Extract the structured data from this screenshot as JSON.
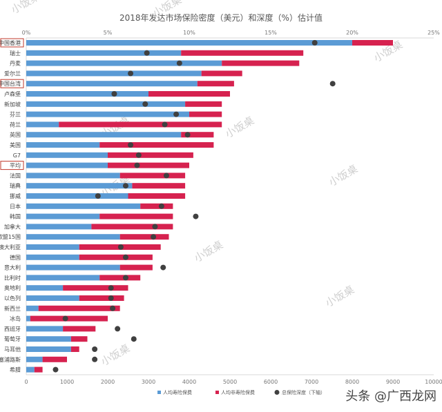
{
  "chart_data": {
    "type": "bar",
    "orientation": "horizontal",
    "stacked": true,
    "title": "2018年发达市场保险密度（美元）和深度（%）估计值",
    "categories": [
      "中国香港",
      "瑞士",
      "丹麦",
      "爱尔兰",
      "中国台湾",
      "卢森堡",
      "新加坡",
      "芬兰",
      "荷兰",
      "英国",
      "美国",
      "G7",
      "平均",
      "法国",
      "瑞典",
      "挪威",
      "日本",
      "韩国",
      "加拿大",
      "欧盟15国",
      "澳大利亚",
      "德国",
      "意大利",
      "比利时",
      "奥地利",
      "以色列",
      "新西兰",
      "冰岛",
      "西班牙",
      "葡萄牙",
      "马耳他",
      "塞浦路斯",
      "希腊"
    ],
    "highlighted": [
      "中国香港",
      "中国台湾",
      "平均"
    ],
    "series": [
      {
        "name": "人均寿险保费",
        "color": "#5b9bd5",
        "values": [
          8000,
          3800,
          4800,
          4300,
          4200,
          3000,
          3900,
          4000,
          800,
          3800,
          1800,
          2000,
          2000,
          2300,
          2600,
          2500,
          2800,
          1800,
          1600,
          2300,
          1300,
          1300,
          2300,
          1800,
          900,
          1300,
          300,
          100,
          900,
          1100,
          1100,
          400,
          200
        ]
      },
      {
        "name": "人均非寿险保费",
        "color": "#d6224f",
        "values": [
          1000,
          3000,
          1900,
          1000,
          900,
          2000,
          900,
          800,
          4000,
          800,
          2800,
          2100,
          2000,
          1600,
          1300,
          1400,
          800,
          1800,
          2000,
          1200,
          2000,
          1800,
          800,
          1000,
          1600,
          1100,
          2000,
          1900,
          800,
          400,
          200,
          600,
          200
        ]
      },
      {
        "name": "总保险深度（下轴）",
        "color": "#404040",
        "type": "scatter",
        "values": [
          17.7,
          7.4,
          9.4,
          6.4,
          18.8,
          5.4,
          7.3,
          9.2,
          8.5,
          9.9,
          6.4,
          6.9,
          6.8,
          8.6,
          6.1,
          4.4,
          8.3,
          10.4,
          7.9,
          7.8,
          5.8,
          6.1,
          8.4,
          6.1,
          5.2,
          5.2,
          5.3,
          2.4,
          5.6,
          6.6,
          4.2,
          4.2,
          1.8
        ]
      }
    ],
    "x_axis_bottom": {
      "range": [
        0,
        10000
      ],
      "ticks": [
        "0",
        "1000",
        "2000",
        "3000",
        "4000",
        "5000",
        "6000",
        "7000",
        "8000",
        "9000",
        "10000"
      ]
    },
    "x_axis_top": {
      "range": [
        0,
        25
      ],
      "ticks": [
        "0%",
        "5%",
        "10%",
        "15%",
        "20%",
        "25%"
      ]
    },
    "grid": false,
    "legend": "bottom"
  },
  "watermarks": [
    "小饭桌",
    "小饭桌",
    "小饭桌",
    "小饭桌",
    "小饭桌",
    "小饭桌",
    "小饭桌",
    "小饭桌",
    "小饭桌",
    "小饭桌"
  ],
  "branding": "头条 @广西龙网"
}
